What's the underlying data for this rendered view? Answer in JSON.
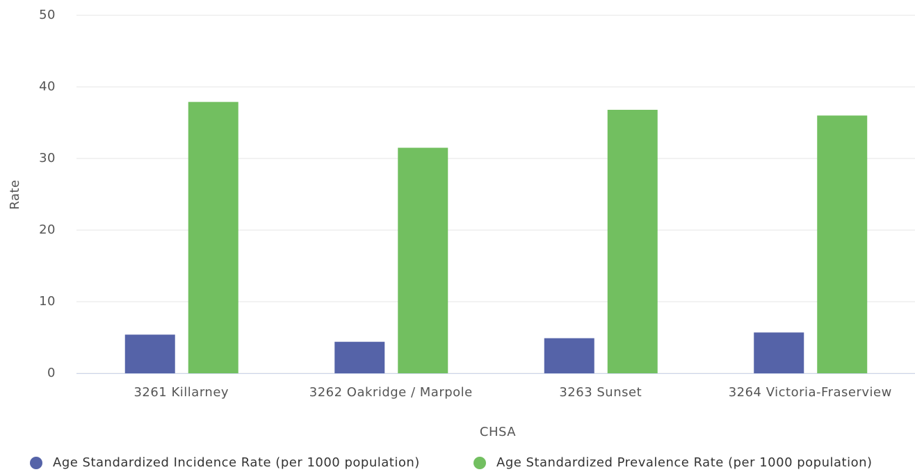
{
  "chart_data": {
    "type": "bar",
    "x_label": "CHSA",
    "y_label": "Rate",
    "categories": [
      "3261 Killarney",
      "3262 Oakridge / Marpole",
      "3263 Sunset",
      "3264 Victoria-Fraserview"
    ],
    "series": [
      {
        "name": "Age Standardized Incidence Rate (per 1000 population)",
        "color": "#5563a8",
        "values": [
          5.4,
          4.4,
          4.9,
          5.7
        ]
      },
      {
        "name": "Age Standardized Prevalence Rate (per 1000 population)",
        "color": "#72bf60",
        "values": [
          37.9,
          31.5,
          36.8,
          36.0
        ]
      }
    ],
    "ylim": [
      0,
      50
    ],
    "yticks": [
      0,
      10,
      20,
      30,
      40,
      50
    ],
    "grid": true,
    "legend": "bottom"
  }
}
